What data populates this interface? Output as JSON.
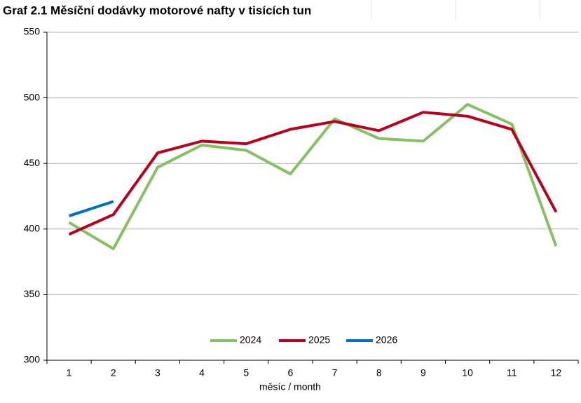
{
  "chart_data": {
    "type": "line",
    "title": "Graf 2.1 Měsíční dodávky motorové nafty v tisících tun",
    "xlabel": "měsíc / month",
    "categories": [
      "1",
      "2",
      "3",
      "4",
      "5",
      "6",
      "7",
      "8",
      "9",
      "10",
      "11",
      "12"
    ],
    "series": [
      {
        "name": "2024",
        "color": "#84c162",
        "values": [
          405,
          385,
          447,
          464,
          460,
          442,
          484,
          469,
          467,
          495,
          480,
          387
        ]
      },
      {
        "name": "2025",
        "color": "#b8001e",
        "values": [
          396,
          411,
          458,
          467,
          465,
          476,
          482,
          475,
          489,
          486,
          476,
          413
        ]
      },
      {
        "name": "2026",
        "color": "#0070c0",
        "values": [
          410,
          421,
          null,
          null,
          null,
          null,
          null,
          null,
          null,
          null,
          null,
          null
        ]
      }
    ],
    "ylim": [
      300,
      550
    ],
    "yticks": [
      300,
      350,
      400,
      450,
      500,
      550
    ],
    "grid": true,
    "legend": "bottom"
  }
}
